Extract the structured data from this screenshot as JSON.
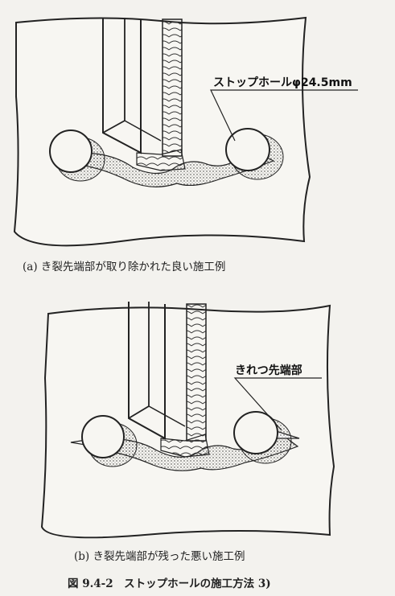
{
  "panel_a": {
    "label": "ストップホールφ24.5mm",
    "caption": "(a) き裂先端部が取り除かれた良い施工例"
  },
  "panel_b": {
    "label": "きれつ先端部",
    "caption": "(b) き裂先端部が残った悪い施工例"
  },
  "figure_caption": "図 9.4-2　ストップホールの施工方法 3)"
}
